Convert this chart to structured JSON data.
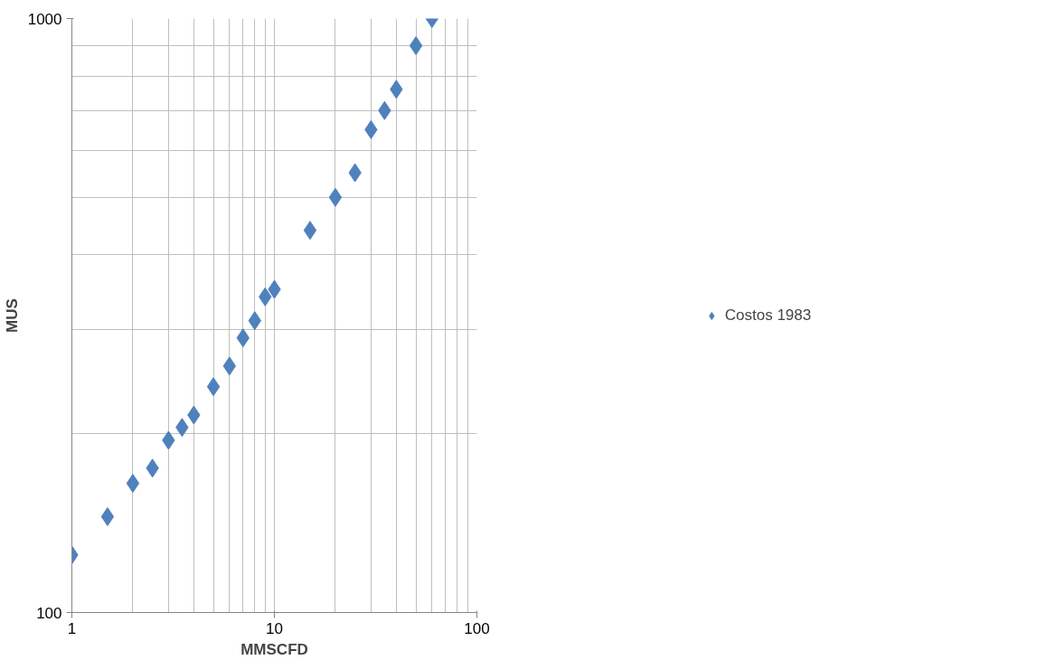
{
  "chart_data": {
    "type": "scatter",
    "xlabel": "MMSCFD",
    "ylabel": "MUS",
    "x": [
      1,
      1.5,
      2,
      2.5,
      3,
      3.5,
      4,
      5,
      6,
      7,
      8,
      9,
      10,
      15,
      20,
      25,
      30,
      35,
      40,
      50,
      60
    ],
    "series": [
      {
        "name": "Costos 1983",
        "color": "#4f81bd",
        "values": [
          125,
          145,
          165,
          175,
          195,
          205,
          215,
          240,
          260,
          290,
          310,
          340,
          350,
          440,
          500,
          550,
          650,
          700,
          760,
          900,
          1000
        ]
      }
    ],
    "xlim": [
      1,
      100
    ],
    "ylim": [
      100,
      1000
    ],
    "xticks": [
      1,
      10,
      100
    ],
    "yticks": [
      100,
      1000
    ],
    "log": "xy",
    "grid": true,
    "legend": "right",
    "marker": "diamond"
  }
}
